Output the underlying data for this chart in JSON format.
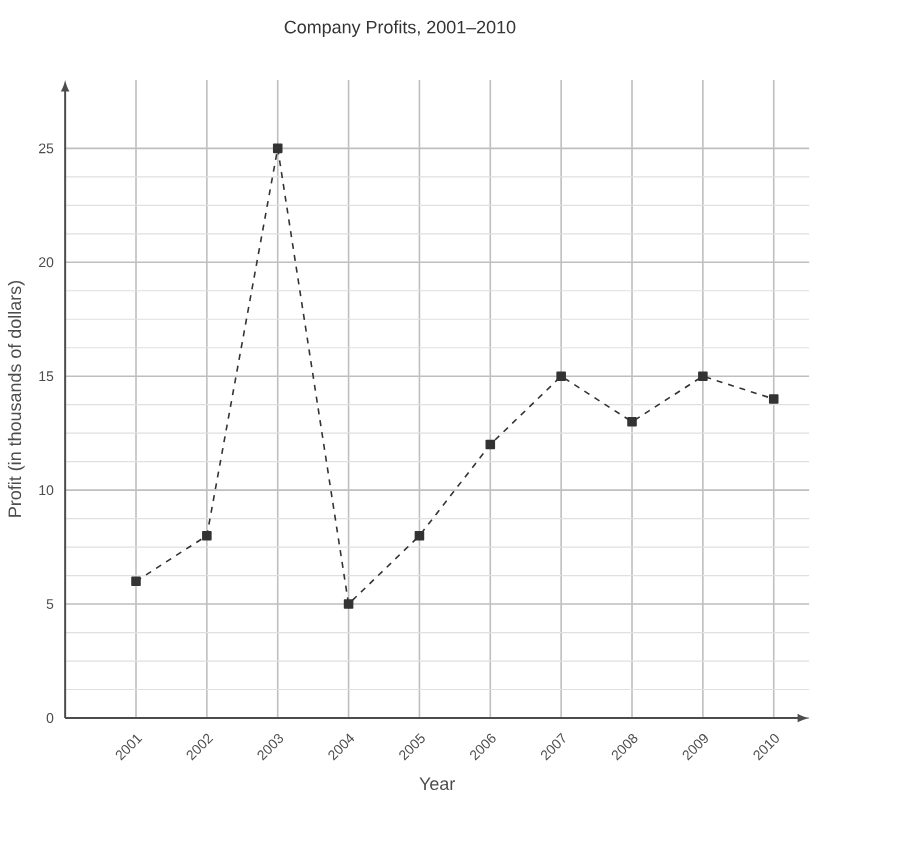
{
  "chart_data": {
    "type": "line",
    "title": "Company Profits, 2001–2010",
    "xlabel": "Year",
    "ylabel": "Profit (in thousands of dollars)",
    "categories": [
      "2001",
      "2002",
      "2003",
      "2004",
      "2005",
      "2006",
      "2007",
      "2008",
      "2009",
      "2010"
    ],
    "series": [
      {
        "color": "#333333",
        "values": [
          6,
          8,
          25,
          5,
          8,
          12,
          15,
          13,
          15,
          14
        ]
      }
    ],
    "ylim": [
      0,
      28
    ],
    "yticks": [
      0,
      5,
      10,
      15,
      20,
      25
    ],
    "grid": true,
    "marker": "square",
    "line_style": "dashed"
  }
}
